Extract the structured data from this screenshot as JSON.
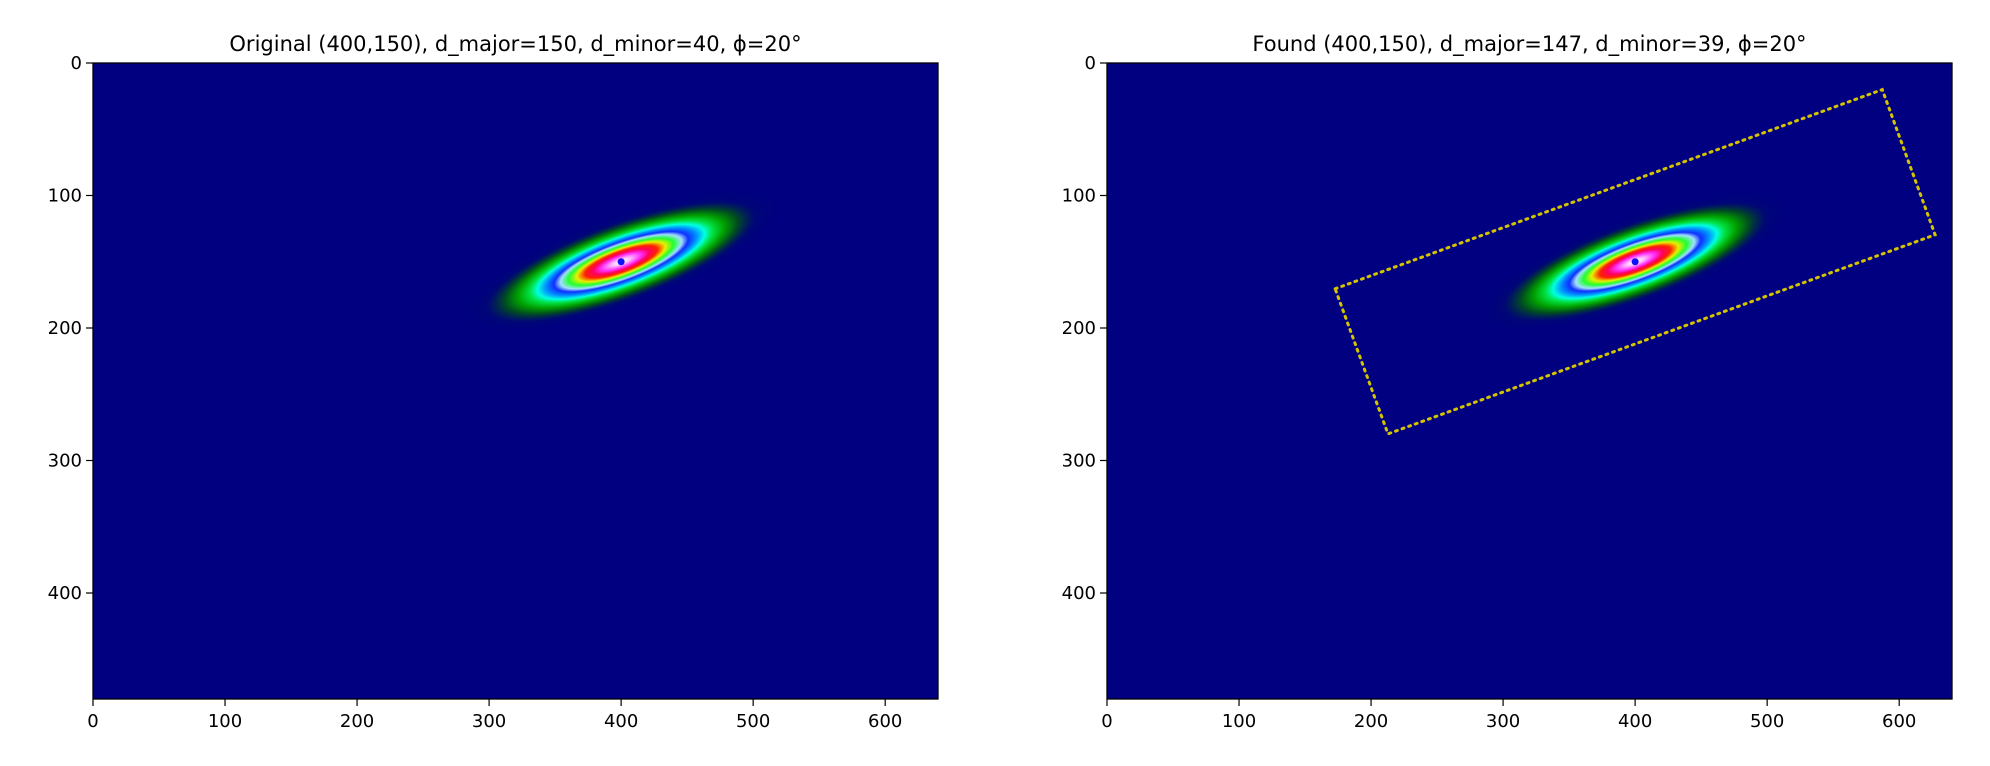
{
  "chart_data": [
    {
      "type": "image",
      "title": "Original (400,150), d_major=150, d_minor=40, ϕ=20°",
      "center": [
        400,
        150
      ],
      "d_major": 150,
      "d_minor": 40,
      "phi": 20,
      "box": false,
      "xlim": [
        0,
        640
      ],
      "ylim": [
        480,
        0
      ],
      "xticks": [
        0,
        100,
        200,
        300,
        400,
        500,
        600
      ],
      "yticks": [
        0,
        100,
        200,
        300,
        400
      ],
      "background": "#000080",
      "box_color": "#d4c400"
    },
    {
      "type": "image",
      "title": "Found (400,150), d_major=147, d_minor=39, ϕ=20°",
      "center": [
        400,
        150
      ],
      "d_major": 147,
      "d_minor": 39,
      "phi": 20,
      "box": true,
      "xlim": [
        0,
        640
      ],
      "ylim": [
        480,
        0
      ],
      "xticks": [
        0,
        100,
        200,
        300,
        400,
        500,
        600
      ],
      "yticks": [
        0,
        100,
        200,
        300,
        400
      ],
      "background": "#000080",
      "box_color": "#d4c400"
    }
  ]
}
